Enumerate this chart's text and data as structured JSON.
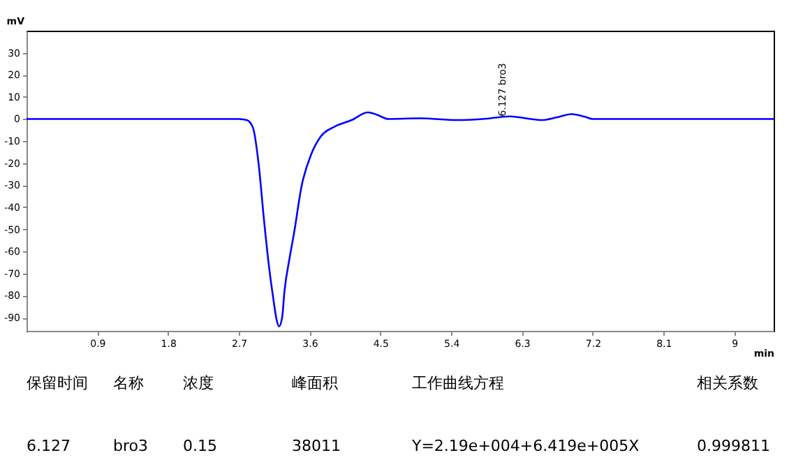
{
  "chart_data": {
    "type": "line",
    "xlabel": "min",
    "ylabel": "mV",
    "x": [
      0,
      1.0,
      2.0,
      2.7,
      2.8,
      2.88,
      2.95,
      3.02,
      3.08,
      3.14,
      3.18,
      3.21,
      3.25,
      3.28,
      3.34,
      3.4,
      3.5,
      3.62,
      3.74,
      3.91,
      4.14,
      4.34,
      4.45,
      4.6,
      5.0,
      5.47,
      5.8,
      6.15,
      6.35,
      6.55,
      6.75,
      6.93,
      7.1,
      7.2,
      8.0,
      9.5
    ],
    "series": [
      {
        "color": "#0000ff",
        "values": [
          0,
          0,
          0,
          0,
          -0.5,
          -4,
          -20,
          -46,
          -66,
          -82,
          -91,
          -94,
          -90,
          -78,
          -64,
          -52,
          -30,
          -16,
          -8,
          -3.6,
          -0.4,
          3,
          2,
          0,
          0.3,
          -0.5,
          0,
          1.2,
          0.3,
          -0.5,
          0.8,
          2.2,
          1,
          0,
          0,
          0
        ]
      }
    ],
    "xlim": [
      0,
      9.5
    ],
    "ylim": [
      -96,
      40
    ],
    "xticks": [
      0.9,
      1.8,
      2.7,
      3.6,
      4.5,
      5.4,
      6.3,
      7.2,
      8.1,
      9
    ],
    "yticks": [
      30,
      20,
      10,
      0,
      -10,
      -20,
      -30,
      -40,
      -50,
      -60,
      -70,
      -80,
      -90
    ],
    "grid": false,
    "legend": false,
    "line_style": "solid",
    "marker": "none",
    "annotations": [
      {
        "text": "6.127 bro3",
        "x": 6.127,
        "y": 1.2
      },
      "保留时间",
      "名称",
      "浓度",
      "峰面积",
      "工作曲线方程",
      "相关系数",
      "6.127",
      "bro3",
      "0.15",
      "38011",
      "Y=2.19e+004+6.419e+005X",
      "0.999811"
    ]
  }
}
